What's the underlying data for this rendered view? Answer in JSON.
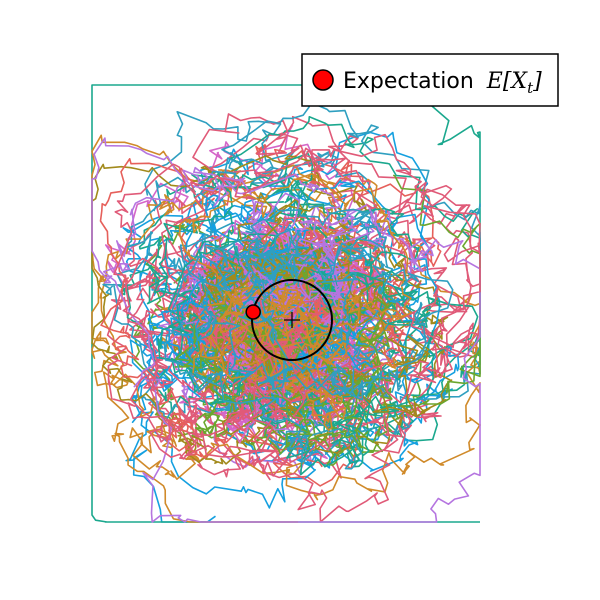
{
  "chart_data": {
    "type": "line",
    "title": "",
    "xlabel": "",
    "ylabel": "",
    "axes_visible": false,
    "grid": false,
    "legend_position": "top-right",
    "series_count": 40,
    "series_colors": [
      "#e6605b",
      "#d466c8",
      "#15a0e0",
      "#1ba88e",
      "#a28a1c",
      "#6ba72e",
      "#b575e0",
      "#e05a78",
      "#d08a2a",
      "#2f9fc0"
    ],
    "process": {
      "description_label": "Expectation",
      "math_base": "E[X",
      "math_sub": "t",
      "math_close": "]"
    },
    "expectation_path": {
      "center": [
        0,
        0
      ],
      "radius": 1,
      "current_point": [
        -0.97,
        0.2
      ],
      "current_color": "#ff0000"
    },
    "origin_marker": "+"
  }
}
